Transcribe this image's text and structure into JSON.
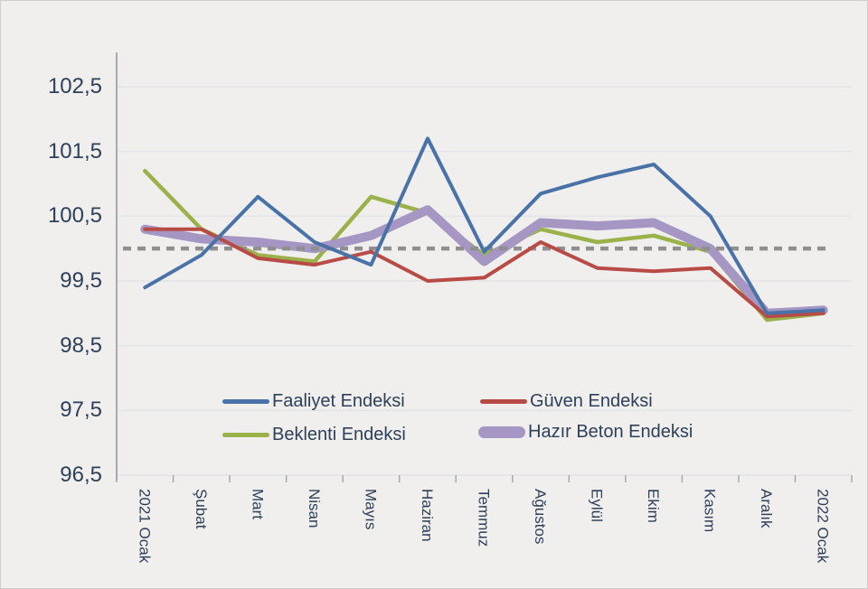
{
  "chart_data": {
    "type": "line",
    "title": "",
    "categories": [
      "2021 Ocak",
      "Şubat",
      "Mart",
      "Nisan",
      "Mayıs",
      "Haziran",
      "Temmuz",
      "Ağustos",
      "Eylül",
      "Ekim",
      "Kasım",
      "Aralık",
      "2022 Ocak"
    ],
    "series": [
      {
        "name": "Faaliyet Endeksi",
        "color": "#4973a8",
        "width": 4,
        "values": [
          99.4,
          99.9,
          100.8,
          100.1,
          99.75,
          101.7,
          99.95,
          100.85,
          101.1,
          101.3,
          100.5,
          99.0,
          99.05
        ]
      },
      {
        "name": "Güven Endeksi",
        "color": "#b94b46",
        "width": 4,
        "values": [
          100.3,
          100.3,
          99.85,
          99.75,
          99.95,
          99.5,
          99.55,
          100.1,
          99.7,
          99.65,
          99.7,
          98.95,
          99.0
        ]
      },
      {
        "name": "Beklenti Endeksi",
        "color": "#9bb24b",
        "width": 4.5,
        "values": [
          101.2,
          100.3,
          99.9,
          99.8,
          100.8,
          100.55,
          99.9,
          100.3,
          100.1,
          100.2,
          99.95,
          98.9,
          99.0
        ]
      },
      {
        "name": "Hazır Beton Endeksi",
        "color": "#a596c3",
        "width": 10,
        "values": [
          100.3,
          100.15,
          100.1,
          100.0,
          100.2,
          100.6,
          99.8,
          100.4,
          100.35,
          100.4,
          100.0,
          99.0,
          99.05
        ]
      }
    ],
    "reference_line": {
      "value": 100.0,
      "color": "#8f8f8f",
      "style": "dashed"
    },
    "y_axis": {
      "min": 96.5,
      "max": 102.5,
      "step": 1.0,
      "tick_labels": [
        "102,5",
        "101,5",
        "100,5",
        "99,5",
        "98,5",
        "97,5",
        "96,5"
      ],
      "tick_values": [
        102.5,
        101.5,
        100.5,
        99.5,
        98.5,
        97.5,
        96.5
      ]
    },
    "x_axis": {
      "label_rotation": "vertical"
    },
    "grid": "horizontal",
    "legend_position": "inside-bottom",
    "legend": [
      {
        "label": "Faaliyet Endeksi",
        "color": "#4973a8",
        "thick": false
      },
      {
        "label": "Güven Endeksi",
        "color": "#b94b46",
        "thick": false
      },
      {
        "label": "Beklenti Endeksi",
        "color": "#9bb24b",
        "thick": false
      },
      {
        "label": "Hazır Beton Endeksi",
        "color": "#a596c3",
        "thick": true
      }
    ],
    "colors": {
      "background": "#f0efed",
      "gridline": "#e3e4e7",
      "axis": "#a3aab4",
      "text": "#2d415a"
    }
  }
}
